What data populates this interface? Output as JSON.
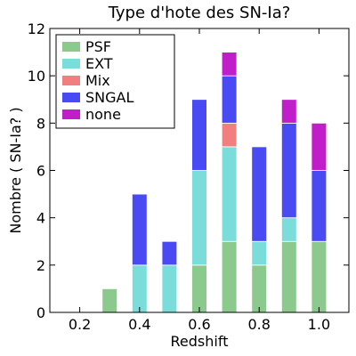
{
  "chart_data": {
    "type": "bar",
    "stacked": true,
    "title": "Type d'hote des SN-Ia?",
    "xlabel": "Redshift",
    "ylabel": "Nombre ( SN-Ia? )",
    "xlim": [
      0.1,
      1.1
    ],
    "ylim": [
      0,
      12
    ],
    "x_ticks": [
      "0.2",
      "0.4",
      "0.6",
      "0.8",
      "1.0"
    ],
    "y_ticks": [
      "0",
      "2",
      "4",
      "6",
      "8",
      "10",
      "12"
    ],
    "x": [
      0.3,
      0.4,
      0.5,
      0.6,
      0.7,
      0.8,
      0.9,
      1.0
    ],
    "bar_width": 0.05,
    "grid": false,
    "legend_position": "upper-left",
    "series": [
      {
        "name": "PSF",
        "color": "#8cc98c",
        "values": [
          1,
          0,
          0,
          2,
          3,
          2,
          3,
          3
        ]
      },
      {
        "name": "EXT",
        "color": "#7addd9",
        "values": [
          0,
          2,
          2,
          4,
          4,
          1,
          1,
          0
        ]
      },
      {
        "name": "Mix",
        "color": "#f27f7f",
        "values": [
          0,
          0,
          0,
          0,
          1,
          0,
          0,
          0
        ]
      },
      {
        "name": "SNGAL",
        "color": "#4a4af2",
        "values": [
          0,
          3,
          1,
          3,
          2,
          4,
          4,
          3
        ]
      },
      {
        "name": "none",
        "color": "#c01ec8",
        "values": [
          0,
          0,
          0,
          0,
          1,
          0,
          1,
          2
        ]
      }
    ]
  }
}
